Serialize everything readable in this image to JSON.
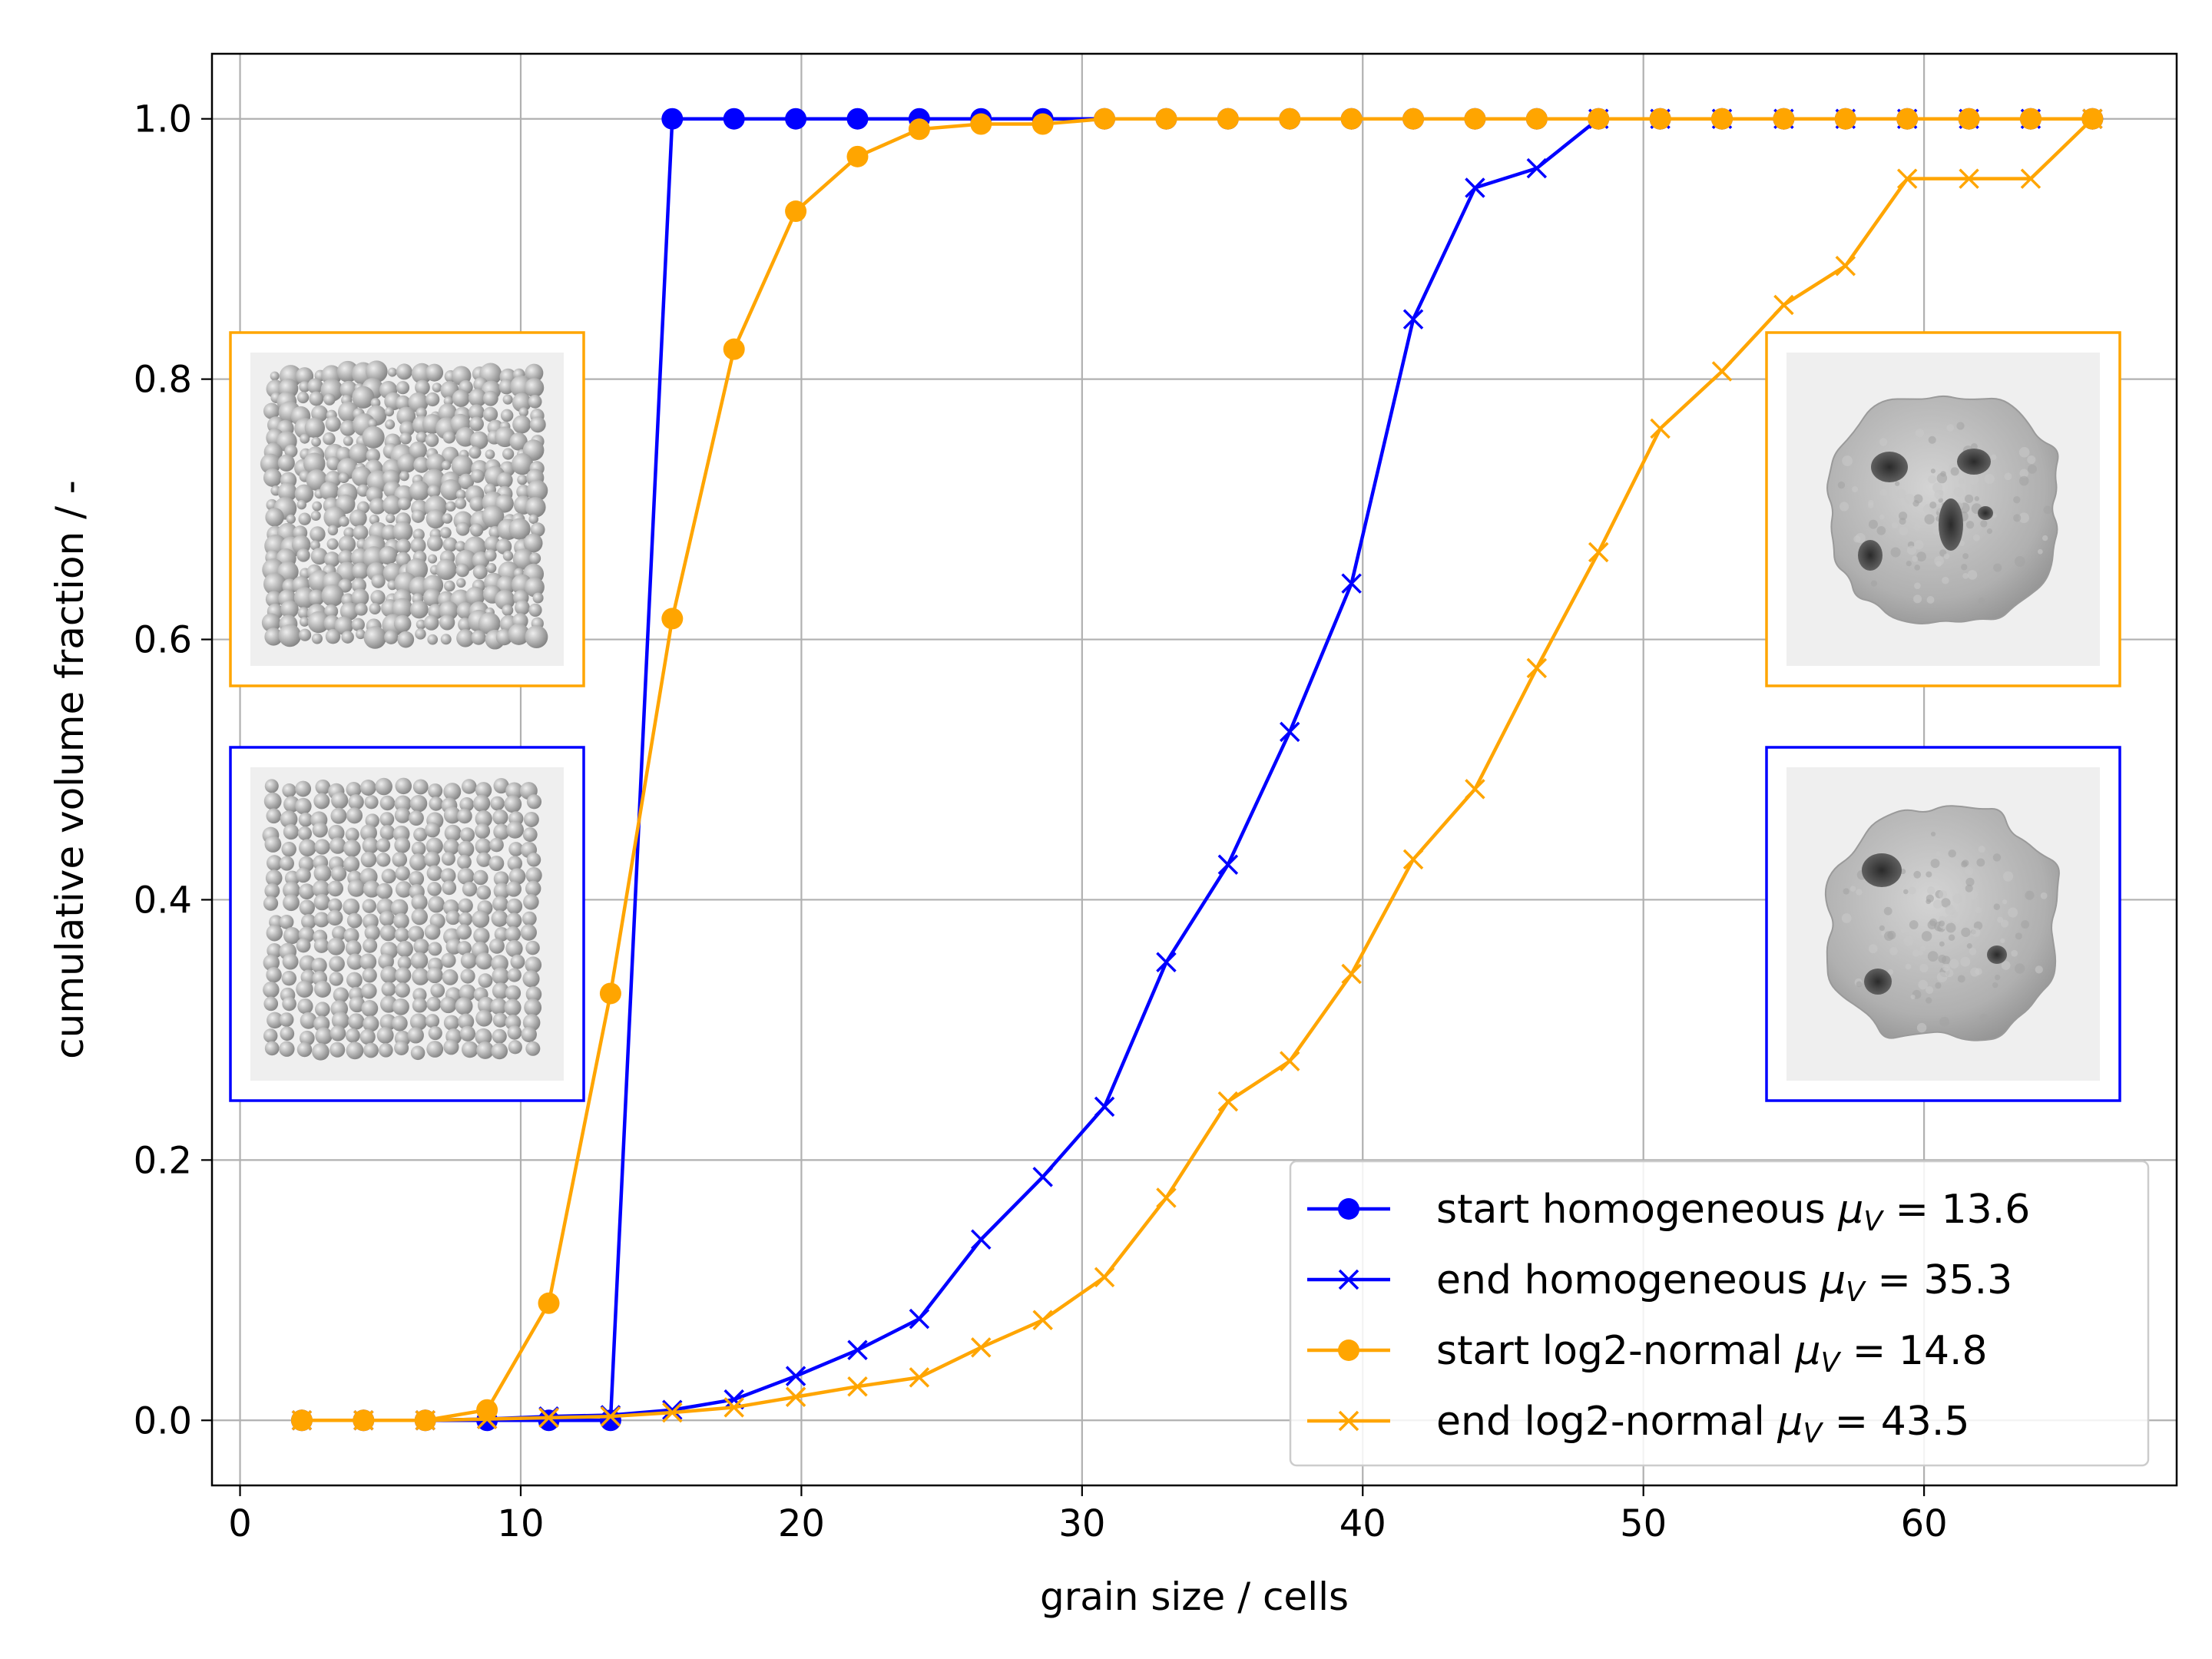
{
  "chart_data": {
    "type": "line",
    "title": "",
    "xlabel": "grain size / cells",
    "ylabel": "cumulative volume fraction / -",
    "xlim": [
      -1,
      69
    ],
    "ylim": [
      -0.05,
      1.05
    ],
    "xticks": [
      0,
      10,
      20,
      30,
      40,
      50,
      60
    ],
    "yticks": [
      0.0,
      0.2,
      0.4,
      0.6,
      0.8,
      1.0
    ],
    "grid": true,
    "legend_placement": "lower-right",
    "series": [
      {
        "name": "start homogeneous",
        "mu_label": "μ",
        "mu_sub": "V",
        "mu_value": "13.6",
        "color": "#0000ff",
        "marker": "circle",
        "x": [
          2.2,
          4.4,
          6.6,
          8.8,
          11.0,
          13.2,
          15.4,
          17.6,
          19.8,
          22.0,
          24.2,
          26.4,
          28.6,
          30.8,
          33.0,
          35.2,
          37.4,
          39.6,
          41.8,
          44.0,
          46.2,
          48.4,
          50.6,
          52.8,
          55.0,
          57.2,
          59.4,
          61.6,
          63.8,
          66.0
        ],
        "y": [
          0,
          0,
          0,
          0,
          0,
          0,
          1,
          1,
          1,
          1,
          1,
          1,
          1,
          1,
          1,
          1,
          1,
          1,
          1,
          1,
          1,
          1,
          1,
          1,
          1,
          1,
          1,
          1,
          1,
          1
        ]
      },
      {
        "name": "end homogeneous",
        "mu_label": "μ",
        "mu_sub": "V",
        "mu_value": "35.3",
        "color": "#0000ff",
        "marker": "x",
        "x": [
          2.2,
          4.4,
          6.6,
          8.8,
          11.0,
          13.2,
          15.4,
          17.6,
          19.8,
          22.0,
          24.2,
          26.4,
          28.6,
          30.8,
          33.0,
          35.2,
          37.4,
          39.6,
          41.8,
          44.0,
          46.2,
          48.4,
          50.6,
          52.8,
          55.0,
          57.2,
          59.4,
          61.6,
          63.8,
          66.0
        ],
        "y": [
          0,
          0,
          0,
          0.001,
          0.003,
          0.004,
          0.008,
          0.016,
          0.034,
          0.054,
          0.078,
          0.139,
          0.187,
          0.241,
          0.352,
          0.427,
          0.529,
          0.643,
          0.846,
          0.947,
          0.962,
          1,
          1,
          1,
          1,
          1,
          1,
          1,
          1,
          1
        ]
      },
      {
        "name": "start log2-normal",
        "mu_label": "μ",
        "mu_sub": "V",
        "mu_value": "14.8",
        "color": "#ffa500",
        "marker": "circle",
        "x": [
          2.2,
          4.4,
          6.6,
          8.8,
          11.0,
          13.2,
          15.4,
          17.6,
          19.8,
          22.0,
          24.2,
          26.4,
          28.6,
          30.8,
          33.0,
          35.2,
          37.4,
          39.6,
          41.8,
          44.0,
          46.2,
          48.4,
          50.6,
          52.8,
          55.0,
          57.2,
          59.4,
          61.6,
          63.8,
          66.0
        ],
        "y": [
          0,
          0,
          0,
          0.008,
          0.09,
          0.328,
          0.616,
          0.823,
          0.929,
          0.971,
          0.992,
          0.996,
          0.996,
          1,
          1,
          1,
          1,
          1,
          1,
          1,
          1,
          1,
          1,
          1,
          1,
          1,
          1,
          1,
          1,
          1
        ]
      },
      {
        "name": "end log2-normal",
        "mu_label": "μ",
        "mu_sub": "V",
        "mu_value": "43.5",
        "color": "#ffa500",
        "marker": "x",
        "x": [
          2.2,
          4.4,
          6.6,
          8.8,
          11.0,
          13.2,
          15.4,
          17.6,
          19.8,
          22.0,
          24.2,
          26.4,
          28.6,
          30.8,
          33.0,
          35.2,
          37.4,
          39.6,
          41.8,
          44.0,
          46.2,
          48.4,
          50.6,
          52.8,
          55.0,
          57.2,
          59.4,
          61.6,
          63.8,
          66.0
        ],
        "y": [
          0,
          0,
          0,
          0.001,
          0.002,
          0.003,
          0.006,
          0.01,
          0.018,
          0.026,
          0.033,
          0.056,
          0.077,
          0.11,
          0.171,
          0.245,
          0.276,
          0.343,
          0.431,
          0.485,
          0.578,
          0.667,
          0.762,
          0.806,
          0.857,
          0.887,
          0.954,
          0.954,
          0.954,
          1
        ]
      }
    ],
    "insets": [
      {
        "position": "upper-left",
        "frame_color": "#ffa500",
        "content": "packed spheres, varied sizes"
      },
      {
        "position": "lower-left",
        "frame_color": "#0000ff",
        "content": "packed spheres, uniform sizes"
      },
      {
        "position": "upper-right",
        "frame_color": "#ffa500",
        "content": "sintered body with pores"
      },
      {
        "position": "lower-right",
        "frame_color": "#0000ff",
        "content": "sintered body with pores"
      }
    ]
  }
}
